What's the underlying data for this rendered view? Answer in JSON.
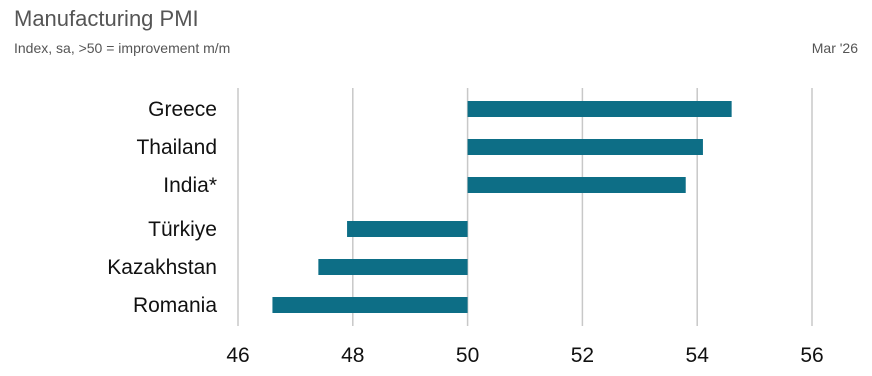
{
  "header": {
    "title": "Manufacturing PMI",
    "subtitle": "Index, sa, >50 = improvement m/m",
    "date": "Mar '26"
  },
  "colors": {
    "bar": "#0d6e86",
    "grid": "#c8c8c8",
    "text": "#111111"
  },
  "chart_data": {
    "type": "bar",
    "orientation": "horizontal",
    "baseline": 50,
    "categories": [
      "Greece",
      "Thailand",
      "India*",
      "Türkiye",
      "Kazakhstan",
      "Romania"
    ],
    "values": [
      54.6,
      54.1,
      53.8,
      47.9,
      47.4,
      46.6
    ],
    "xlim": [
      46,
      56
    ],
    "xticks": [
      "46",
      "48",
      "50",
      "52",
      "54",
      "56"
    ],
    "grid": "vertical"
  }
}
